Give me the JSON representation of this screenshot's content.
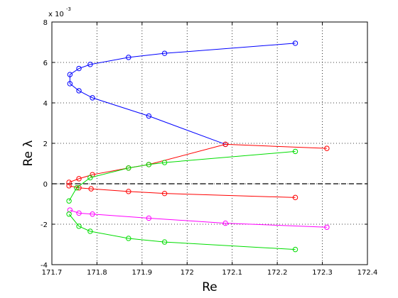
{
  "chart_data": {
    "type": "line",
    "xlabel": "Re",
    "ylabel": "Re λ",
    "y_multiplier_label": "x 10",
    "y_multiplier_exponent": "-3",
    "xlim": [
      171.7,
      172.4
    ],
    "ylim": [
      -4,
      8
    ],
    "xticks": [
      171.7,
      171.8,
      171.9,
      172,
      172.1,
      172.2,
      172.3,
      172.4
    ],
    "xtick_labels": [
      "171.7",
      "171.8",
      "171.9",
      "172",
      "172.1",
      "172.2",
      "172.3",
      "172.4"
    ],
    "yticks": [
      -4,
      -2,
      0,
      2,
      4,
      6,
      8
    ],
    "ytick_labels": [
      "-4",
      "-2",
      "0",
      "2",
      "4",
      "6",
      "8"
    ],
    "grid": true,
    "reference_line": {
      "y": 0,
      "style": "dashed",
      "color": "#000000"
    },
    "marker": "circle",
    "series": [
      {
        "color": "#0000ff",
        "x": [
          172.24,
          171.95,
          171.87,
          171.785,
          171.76,
          171.74,
          171.74,
          171.76,
          171.79,
          171.915,
          172.085
        ],
        "y": [
          6.95,
          6.45,
          6.25,
          5.9,
          5.7,
          5.4,
          4.95,
          4.6,
          4.25,
          3.35,
          1.95
        ]
      },
      {
        "color": "#ff0000",
        "x": [
          171.738,
          171.76,
          171.79,
          171.87,
          171.915,
          172.085,
          172.31
        ],
        "y": [
          0.07,
          0.25,
          0.45,
          0.78,
          0.95,
          1.95,
          1.75
        ]
      },
      {
        "color": "#ff0000",
        "x": [
          171.738,
          171.76,
          171.787,
          171.87,
          171.95,
          172.24
        ],
        "y": [
          -0.1,
          -0.2,
          -0.25,
          -0.38,
          -0.48,
          -0.68
        ]
      },
      {
        "color": "#00dd00",
        "x": [
          171.738,
          171.755,
          171.785,
          171.87,
          171.915,
          171.95,
          172.24
        ],
        "y": [
          -0.85,
          -0.2,
          0.3,
          0.78,
          0.95,
          1.05,
          1.6
        ]
      },
      {
        "color": "#ff00ff",
        "x": [
          171.74,
          171.76,
          171.79,
          171.915,
          172.085,
          172.31
        ],
        "y": [
          -1.3,
          -1.45,
          -1.5,
          -1.7,
          -1.95,
          -2.15
        ]
      },
      {
        "color": "#00dd00",
        "x": [
          171.738,
          171.76,
          171.785,
          171.87,
          171.95,
          172.24
        ],
        "y": [
          -1.5,
          -2.1,
          -2.35,
          -2.7,
          -2.88,
          -3.25
        ]
      }
    ]
  }
}
